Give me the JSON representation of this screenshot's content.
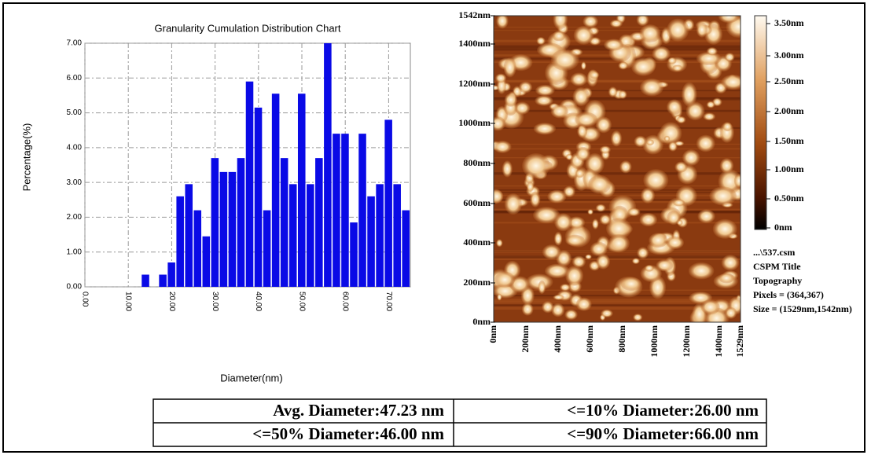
{
  "chart_data": {
    "type": "histogram",
    "title": "Granularity Cumulation Distribution  Chart",
    "x_label": "Diameter(nm)",
    "y_label": "Percentage(%)",
    "bins": [
      13,
      15,
      17,
      19,
      21,
      23,
      25,
      27,
      29,
      31,
      33,
      35,
      37,
      39,
      41,
      43,
      45,
      47,
      49,
      51,
      53,
      55,
      57,
      59,
      61,
      63,
      65,
      67,
      69,
      71,
      73,
      75
    ],
    "values": [
      0.35,
      0,
      0.35,
      0.7,
      2.6,
      2.95,
      2.2,
      1.45,
      3.7,
      3.3,
      3.3,
      3.7,
      5.9,
      5.15,
      2.2,
      5.55,
      3.7,
      2.95,
      5.55,
      2.95,
      3.7,
      7.0,
      4.4,
      4.4,
      1.85,
      4.4,
      2.6,
      2.95,
      4.8,
      2.95,
      2.2
    ],
    "color": "#0a0ae6",
    "xlim": [
      0,
      75
    ],
    "xticks": [
      {
        "value": 0,
        "label": "0.00"
      },
      {
        "value": 10,
        "label": "10.00"
      },
      {
        "value": 20,
        "label": "20.00"
      },
      {
        "value": 30,
        "label": "30.00"
      },
      {
        "value": 40,
        "label": "40.00"
      },
      {
        "value": 50,
        "label": "50.00"
      },
      {
        "value": 60,
        "label": "60.00"
      },
      {
        "value": 70,
        "label": "70.00"
      }
    ],
    "ylim": [
      0,
      7
    ],
    "yticks": [
      {
        "value": 0,
        "label": "0.00"
      },
      {
        "value": 1,
        "label": "1.00"
      },
      {
        "value": 2,
        "label": "2.00"
      },
      {
        "value": 3,
        "label": "3.00"
      },
      {
        "value": 4,
        "label": "4.00"
      },
      {
        "value": 5,
        "label": "5.00"
      },
      {
        "value": 6,
        "label": "6.00"
      },
      {
        "value": 7,
        "label": "7.00"
      }
    ],
    "grid": true
  },
  "afm_image": {
    "y_labels": [
      "1542nm",
      "1400nm",
      "1200nm",
      "1000nm",
      "800nm",
      "600nm",
      "400nm",
      "200nm",
      "0nm"
    ],
    "x_labels": [
      "0nm",
      "200nm",
      "400nm",
      "600nm",
      "800nm",
      "1000nm",
      "1200nm",
      "1400nm",
      "1529nm"
    ],
    "colorbar_labels": [
      "3.50nm",
      "3.00nm",
      "2.50nm",
      "2.00nm",
      "1.50nm",
      "1.00nm",
      "0.50nm",
      "0nm"
    ],
    "info": [
      "...\\537.csm",
      "CSPM Title",
      "Topography",
      "Pixels = (364,367)",
      "Size = (1529nm,1542nm)"
    ]
  },
  "table": {
    "rows": [
      [
        "Avg. Diameter:47.23 nm",
        "<=10% Diameter:26.00 nm"
      ],
      [
        "<=50% Diameter:46.00 nm",
        "<=90% Diameter:66.00 nm"
      ]
    ]
  }
}
